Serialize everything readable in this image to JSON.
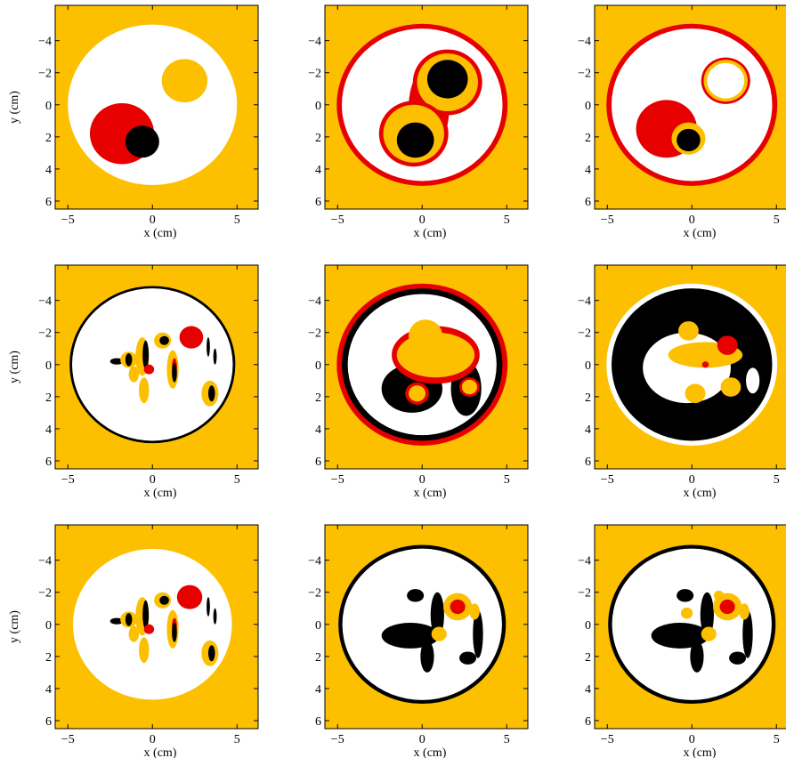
{
  "chart_data": [
    {
      "type": "image",
      "ylabel": "y (cm)",
      "xlabel": "x (cm)",
      "xlim": [
        -5.75,
        6.25
      ],
      "ylim": [
        6.5,
        -6.2
      ],
      "xticks": [
        {
          "value": -5,
          "label": "−5"
        },
        0,
        5
      ],
      "yticks": [
        {
          "value": -4,
          "label": "−4"
        },
        {
          "value": -2,
          "label": "−2"
        },
        0,
        2,
        4,
        6
      ]
    },
    {
      "type": "image",
      "xlabel": "x (cm)",
      "xlim": [
        -5.75,
        6.25
      ],
      "ylim": [
        6.5,
        -6.2
      ],
      "xticks": [
        {
          "value": -5,
          "label": "−5"
        },
        0,
        5
      ],
      "yticks": [
        {
          "value": -4,
          "label": "−4"
        },
        {
          "value": -2,
          "label": "−2"
        },
        0,
        2,
        4,
        6
      ]
    },
    {
      "type": "image",
      "xlabel": "x (cm)",
      "xlim": [
        -5.75,
        6.25
      ],
      "ylim": [
        6.5,
        -6.2
      ],
      "xticks": [
        {
          "value": -5,
          "label": "−5"
        },
        0,
        5
      ],
      "yticks": [
        {
          "value": -4,
          "label": "−4"
        },
        {
          "value": -2,
          "label": "−2"
        },
        0,
        2,
        4,
        6
      ]
    },
    {
      "type": "image",
      "ylabel": "y (cm)",
      "xlabel": "x (cm)",
      "xlim": [
        -5.75,
        6.25
      ],
      "ylim": [
        6.5,
        -6.2
      ],
      "xticks": [
        {
          "value": -5,
          "label": "−5"
        },
        0,
        5
      ],
      "yticks": [
        {
          "value": -4,
          "label": "−4"
        },
        {
          "value": -2,
          "label": "−2"
        },
        0,
        2,
        4,
        6
      ]
    },
    {
      "type": "image",
      "xlabel": "x (cm)",
      "xlim": [
        -5.75,
        6.25
      ],
      "ylim": [
        6.5,
        -6.2
      ],
      "xticks": [
        {
          "value": -5,
          "label": "−5"
        },
        0,
        5
      ],
      "yticks": [
        {
          "value": -4,
          "label": "−4"
        },
        {
          "value": -2,
          "label": "−2"
        },
        0,
        2,
        4,
        6
      ]
    },
    {
      "type": "image",
      "xlabel": "x (cm)",
      "xlim": [
        -5.75,
        6.25
      ],
      "ylim": [
        6.5,
        -6.2
      ],
      "xticks": [
        {
          "value": -5,
          "label": "−5"
        },
        0,
        5
      ],
      "yticks": [
        {
          "value": -4,
          "label": "−4"
        },
        {
          "value": -2,
          "label": "−2"
        },
        0,
        2,
        4,
        6
      ]
    },
    {
      "type": "image",
      "ylabel": "y (cm)",
      "xlabel": "x (cm)",
      "xlim": [
        -5.75,
        6.25
      ],
      "ylim": [
        6.5,
        -6.2
      ],
      "xticks": [
        {
          "value": -5,
          "label": "−5"
        },
        0,
        5
      ],
      "yticks": [
        {
          "value": -4,
          "label": "−4"
        },
        {
          "value": -2,
          "label": "−2"
        },
        0,
        2,
        4,
        6
      ]
    },
    {
      "type": "image",
      "xlabel": "x (cm)",
      "xlim": [
        -5.75,
        6.25
      ],
      "ylim": [
        6.5,
        -6.2
      ],
      "xticks": [
        {
          "value": -5,
          "label": "−5"
        },
        0,
        5
      ],
      "yticks": [
        {
          "value": -4,
          "label": "−4"
        },
        {
          "value": -2,
          "label": "−2"
        },
        0,
        2,
        4,
        6
      ]
    },
    {
      "type": "image",
      "xlabel": "x (cm)",
      "xlim": [
        -5.75,
        6.25
      ],
      "ylim": [
        6.5,
        -6.2
      ],
      "xticks": [
        {
          "value": -5,
          "label": "−5"
        },
        0,
        5
      ],
      "yticks": [
        {
          "value": -4,
          "label": "−4"
        },
        {
          "value": -2,
          "label": "−2"
        },
        0,
        2,
        4,
        6
      ]
    }
  ]
}
